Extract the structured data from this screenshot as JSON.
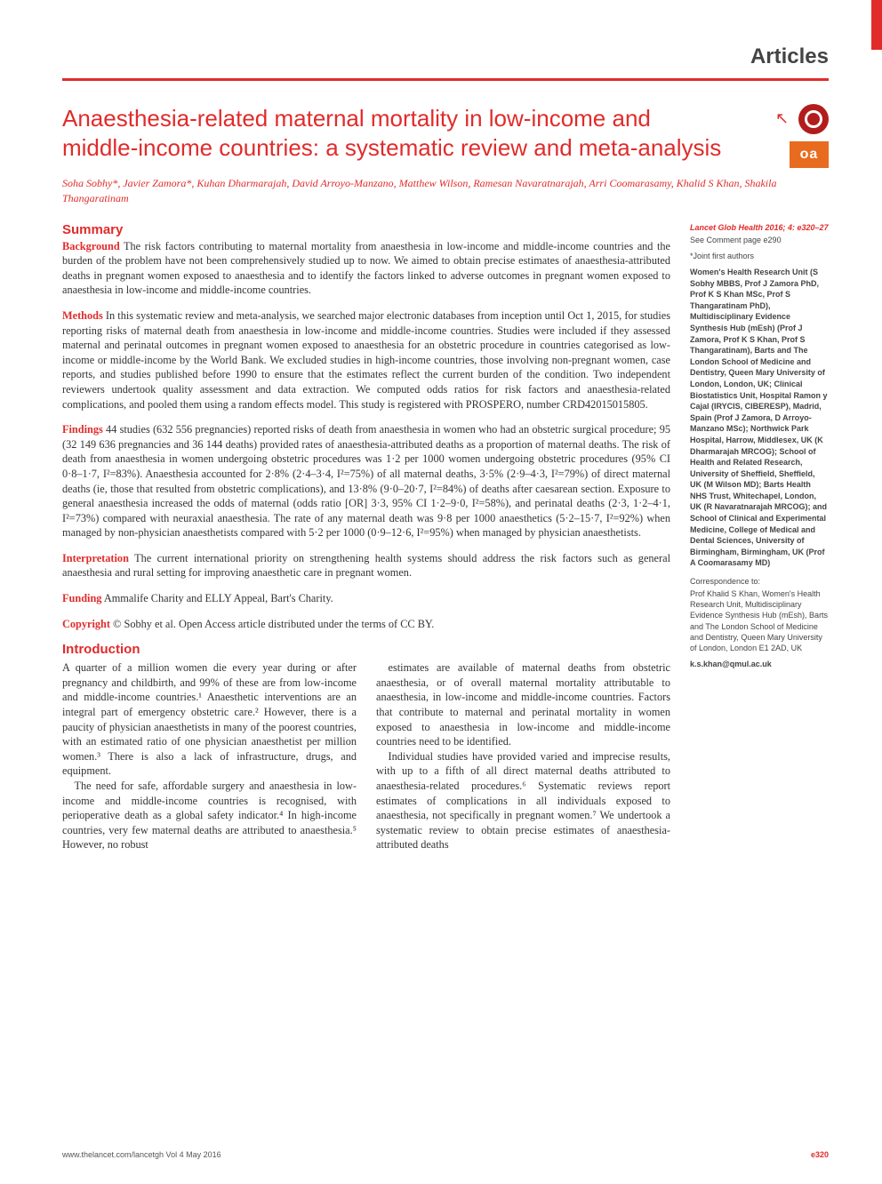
{
  "colors": {
    "accent": "#e12b2b",
    "oa_badge": "#e86c1f",
    "crossmark": "#b31c1c",
    "text": "#333333",
    "side_text": "#444444",
    "background": "#ffffff"
  },
  "typography": {
    "title_fontsize": 26,
    "body_fontsize": 12.3,
    "side_fontsize": 9,
    "heading_fontsize": 15,
    "authors_fontsize": 12,
    "section_label_fontsize": 24
  },
  "section_label": "Articles",
  "title": "Anaesthesia-related maternal mortality in low-income and middle-income countries: a systematic review and meta-analysis",
  "authors": "Soha Sobhy*, Javier Zamora*, Kuhan Dharmarajah, David Arroyo-Manzano, Matthew Wilson, Ramesan Navaratnarajah, Arri Coomarasamy, Khalid S Khan, Shakila Thangaratinam",
  "badges": {
    "crossmark_label": "CrossMark",
    "oa_label": "oa"
  },
  "summary_heading": "Summary",
  "abstract": {
    "background": {
      "label": "Background",
      "text": " The risk factors contributing to maternal mortality from anaesthesia in low-income and middle-income countries and the burden of the problem have not been comprehensively studied up to now. We aimed to obtain precise estimates of anaesthesia-attributed deaths in pregnant women exposed to anaesthesia and to identify the factors linked to adverse outcomes in pregnant women exposed to anaesthesia in low-income and middle-income countries."
    },
    "methods": {
      "label": "Methods",
      "text": " In this systematic review and meta-analysis, we searched major electronic databases from inception until Oct 1, 2015, for studies reporting risks of maternal death from anaesthesia in low-income and middle-income countries. Studies were included if they assessed maternal and perinatal outcomes in pregnant women exposed to anaesthesia for an obstetric procedure in countries categorised as low-income or middle-income by the World Bank. We excluded studies in high-income countries, those involving non-pregnant women, case reports, and studies published before 1990 to ensure that the estimates reflect the current burden of the condition. Two independent reviewers undertook quality assessment and data extraction. We computed odds ratios for risk factors and anaesthesia-related complications, and pooled them using a random effects model. This study is registered with PROSPERO, number CRD42015015805."
    },
    "findings": {
      "label": "Findings",
      "text": " 44 studies (632 556 pregnancies) reported risks of death from anaesthesia in women who had an obstetric surgical procedure; 95 (32 149 636 pregnancies and 36 144 deaths) provided rates of anaesthesia-attributed deaths as a proportion of maternal deaths. The risk of death from anaesthesia in women undergoing obstetric procedures was 1·2 per 1000 women undergoing obstetric procedures (95% CI 0·8–1·7, I²=83%). Anaesthesia accounted for 2·8% (2·4–3·4, I²=75%) of all maternal deaths, 3·5% (2·9–4·3, I²=79%) of direct maternal deaths (ie, those that resulted from obstetric complications), and 13·8% (9·0–20·7, I²=84%) of deaths after caesarean section. Exposure to general anaesthesia increased the odds of maternal (odds ratio [OR] 3·3, 95% CI 1·2–9·0, I²=58%), and perinatal deaths (2·3, 1·2–4·1, I²=73%) compared with neuraxial anaesthesia. The rate of any maternal death was 9·8 per 1000 anaesthetics (5·2–15·7, I²=92%) when managed by non-physician anaesthetists compared with 5·2 per 1000 (0·9–12·6, I²=95%) when managed by physician anaesthetists."
    },
    "interpretation": {
      "label": "Interpretation",
      "text": " The current international priority on strengthening health systems should address the risk factors such as general anaesthesia and rural setting for improving anaesthetic care in pregnant women."
    },
    "funding": {
      "label": "Funding",
      "text": " Ammalife Charity and ELLY Appeal, Bart's Charity."
    },
    "copyright": {
      "label": "Copyright",
      "text": " © Sobhy et al. Open Access article distributed under the terms of CC BY."
    }
  },
  "intro_heading": "Introduction",
  "intro_paragraphs": [
    "A quarter of a million women die every year during or after pregnancy and childbirth, and 99% of these are from low-income and middle-income countries.¹ Anaesthetic interventions are an integral part of emergency obstetric care.² However, there is a paucity of physician anaesthetists in many of the poorest countries, with an estimated ratio of one physician anaesthetist per million women.³ There is also a lack of infrastructure, drugs, and equipment.",
    "The need for safe, affordable surgery and anaesthesia in low-income and middle-income countries is recognised, with perioperative death as a global safety indicator.⁴ In high-income countries, very few maternal deaths are attributed to anaesthesia.⁵ However, no robust",
    "estimates are available of maternal deaths from obstetric anaesthesia, or of overall maternal mortality attributable to anaesthesia, in low-income and middle-income countries. Factors that contribute to maternal and perinatal mortality in women exposed to anaesthesia in low-income and middle-income countries need to be identified.",
    "Individual studies have provided varied and imprecise results, with up to a fifth of all direct maternal deaths attributed to anaesthesia-related procedures.⁶ Systematic reviews report estimates of complications in all individuals exposed to anaesthesia, not specifically in pregnant women.⁷ We undertook a systematic review to obtain precise estimates of anaesthesia-attributed deaths"
  ],
  "sidebar": {
    "journal_ref": "Lancet Glob Health 2016; 4: e320–27",
    "see_comment": "See Comment page e290",
    "joint_first": "*Joint first authors",
    "affiliations": "Women's Health Research Unit (S Sobhy MBBS, Prof J Zamora PhD, Prof K S Khan MSc, Prof S Thangaratinam PhD), Multidisciplinary Evidence Synthesis Hub (mEsh) (Prof J Zamora, Prof K S Khan, Prof S Thangaratinam), Barts and The London School of Medicine and Dentistry, Queen Mary University of London, London, UK; Clinical Biostatistics Unit, Hospital Ramon y Cajal (IRYCIS, CIBERESP), Madrid, Spain (Prof J Zamora, D Arroyo-Manzano MSc); Northwick Park Hospital, Harrow, Middlesex, UK (K Dharmarajah MRCOG); School of Health and Related Research, University of Sheffield, Sheffield, UK (M Wilson MD); Barts Health NHS Trust, Whitechapel, London, UK (R Navaratnarajah MRCOG); and School of Clinical and Experimental Medicine, College of Medical and Dental Sciences, University of Birmingham, Birmingham, UK (Prof A Coomarasamy MD)",
    "correspondence_label": "Correspondence to:",
    "correspondence": "Prof Khalid S Khan, Women's Health Research Unit, Multidisciplinary Evidence Synthesis Hub (mEsh), Barts and The London School of Medicine and Dentistry, Queen Mary University of London, London E1 2AD, UK",
    "email": "k.s.khan@qmul.ac.uk"
  },
  "footer": {
    "left": "www.thelancet.com/lancetgh   Vol 4   May 2016",
    "right": "e320"
  }
}
